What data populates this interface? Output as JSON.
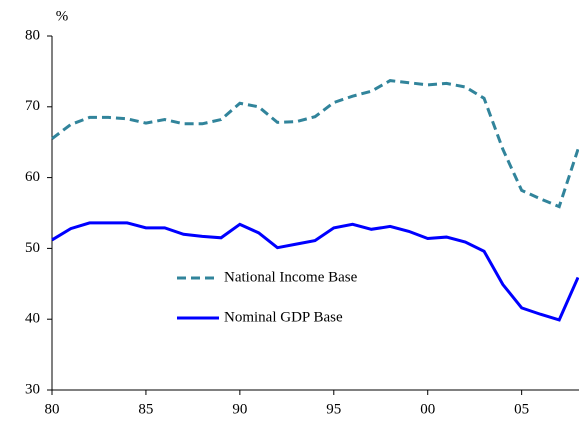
{
  "chart_data": {
    "type": "line",
    "y_label": "%",
    "x": [
      1980,
      1981,
      1982,
      1983,
      1984,
      1985,
      1986,
      1987,
      1988,
      1989,
      1990,
      1991,
      1992,
      1993,
      1994,
      1995,
      1996,
      1997,
      1998,
      1999,
      2000,
      2001,
      2002,
      2003,
      2004,
      2005,
      2006,
      2007,
      2008
    ],
    "series": [
      {
        "name": "National Income Base",
        "color": "#31849b",
        "dash": true,
        "values": [
          65.5,
          67.5,
          68.5,
          68.5,
          68.3,
          67.7,
          68.2,
          67.6,
          67.6,
          68.2,
          70.5,
          70.0,
          67.8,
          67.9,
          68.6,
          70.6,
          71.5,
          72.2,
          73.7,
          73.4,
          73.1,
          73.3,
          72.8,
          71.2,
          64.0,
          58.2,
          57.0,
          55.9,
          64.0
        ]
      },
      {
        "name": "Nominal GDP Base",
        "color": "#0000ff",
        "dash": false,
        "values": [
          51.2,
          52.8,
          53.6,
          53.6,
          53.6,
          52.9,
          52.9,
          52.0,
          51.7,
          51.5,
          53.4,
          52.2,
          50.1,
          50.6,
          51.1,
          52.9,
          53.4,
          52.7,
          53.1,
          52.4,
          51.4,
          51.6,
          50.9,
          49.6,
          44.9,
          41.6,
          40.7,
          39.9,
          45.9
        ]
      }
    ],
    "xlim": [
      1980,
      2008
    ],
    "xticks": [
      {
        "value": 1980,
        "label": "80"
      },
      {
        "value": 1985,
        "label": "85"
      },
      {
        "value": 1990,
        "label": "90"
      },
      {
        "value": 1995,
        "label": "95"
      },
      {
        "value": 2000,
        "label": "00"
      },
      {
        "value": 2005,
        "label": "05"
      }
    ],
    "ylim": [
      30,
      80
    ],
    "yticks": [
      30,
      40,
      50,
      60,
      70,
      80
    ],
    "grid": false,
    "legend": "lower center"
  }
}
